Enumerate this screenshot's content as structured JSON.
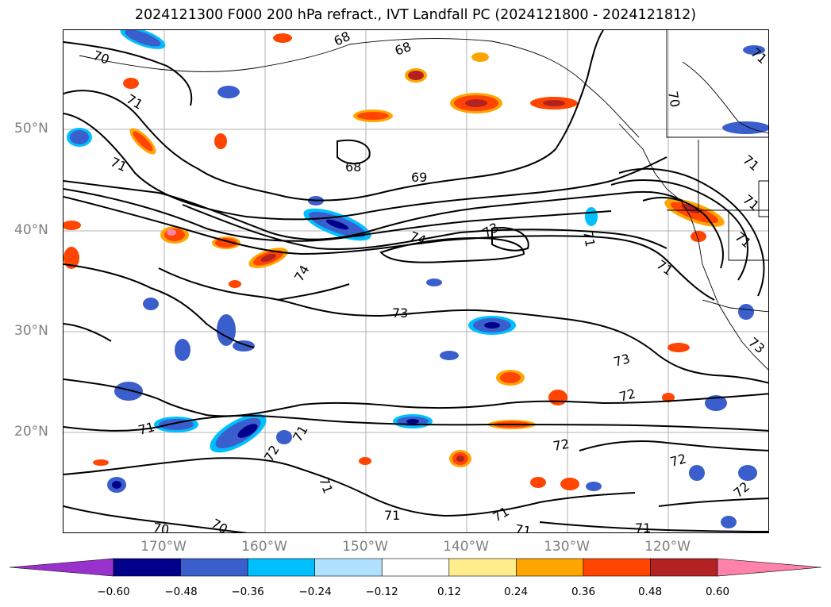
{
  "title": "2024121300 F000 200 hPa refract., IVT Landfall PC (2024121800 - 2024121812)",
  "lat_labels": [
    "50°N",
    "40°N",
    "30°N",
    "20°N"
  ],
  "lon_labels": [
    "170°W",
    "160°W",
    "150°W",
    "140°W",
    "130°W",
    "120°W"
  ],
  "contour_labels": [
    "70",
    "71",
    "68",
    "68",
    "68",
    "69",
    "71",
    "70",
    "71",
    "74",
    "73",
    "71",
    "74",
    "73",
    "71",
    "73",
    "72",
    "71",
    "72",
    "72",
    "72",
    "71",
    "71",
    "71",
    "71",
    "70",
    "70",
    "71",
    "71",
    "72",
    "71",
    "71",
    "71",
    "73"
  ],
  "colorbar": {
    "ticks": [
      "−0.60",
      "−0.48",
      "−0.36",
      "−0.24",
      "−0.12",
      "0.12",
      "0.24",
      "0.36",
      "0.48",
      "0.60"
    ],
    "colors": [
      "#9932cc",
      "#00008b",
      "#3a5fcd",
      "#00bfff",
      "#b0e2ff",
      "#ffffff",
      "#ffec8b",
      "#ffa500",
      "#ff4500",
      "#b22222",
      "#ff82ab"
    ]
  }
}
